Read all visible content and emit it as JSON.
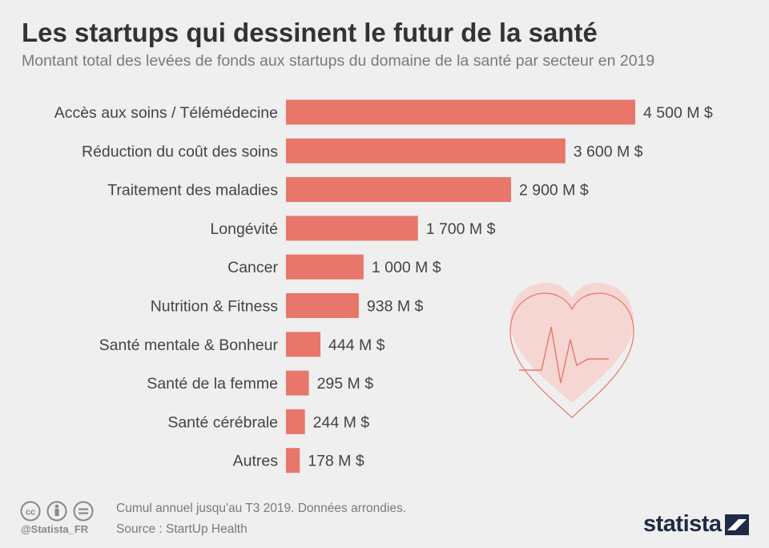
{
  "header": {
    "title": "Les startups qui dessinent le futur de la santé",
    "subtitle": "Montant total des levées de fonds aux startups du domaine de la santé par secteur en 2019"
  },
  "colors": {
    "bar": "#e8766a",
    "heart_fill": "#f5d6d3",
    "heart_line": "#e8766a",
    "text": "#444444"
  },
  "chart_data": {
    "type": "bar",
    "orientation": "horizontal",
    "categories": [
      "Accès aux soins / Télémédecine",
      "Réduction du coût des soins",
      "Traitement des maladies",
      "Longévité",
      "Cancer",
      "Nutrition & Fitness",
      "Santé mentale & Bonheur",
      "Santé de la femme",
      "Santé cérébrale",
      "Autres"
    ],
    "values": [
      4500,
      3600,
      2900,
      1700,
      1000,
      938,
      444,
      295,
      244,
      178
    ],
    "value_labels": [
      "4 500 M $",
      "3 600 M $",
      "2 900 M $",
      "1 700 M $",
      "1 000 M $",
      "938 M $",
      "444 M $",
      "295 M $",
      "244 M $",
      "178 M $"
    ],
    "xlim": [
      0,
      4500
    ],
    "grid": false,
    "legend": "none"
  },
  "footer": {
    "note": "Cumul annuel jusqu'au T3 2019. Données arrondies.",
    "source": "Source : StartUp Health",
    "handle": "@Statista_FR",
    "logo_text": "statista",
    "icons": [
      "cc-icon",
      "by-icon",
      "nd-icon"
    ]
  }
}
